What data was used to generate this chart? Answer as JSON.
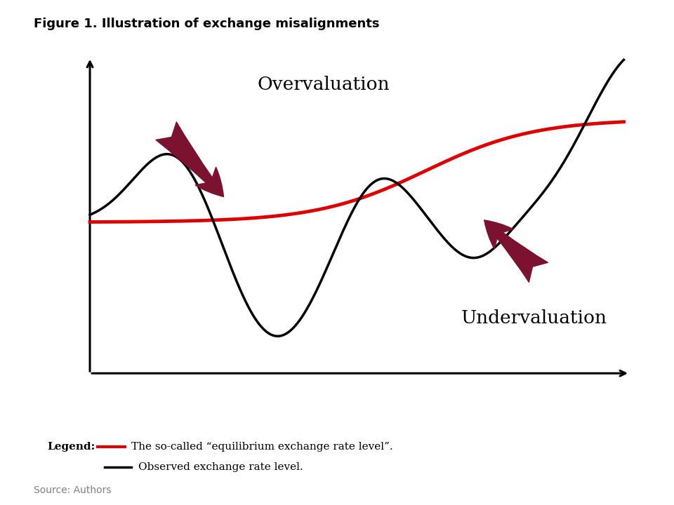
{
  "title": "Figure 1. Illustration of exchange misalignments",
  "title_fontsize": 13,
  "title_fontweight": "bold",
  "background_color": "#ffffff",
  "arrow_color": "#7B1230",
  "red_line_color": "#DD0000",
  "black_line_color": "#000000",
  "overvaluation_label": "Overvaluation",
  "undervaluation_label": "Undervaluation",
  "legend_red_text": "The so-called “equilibrium exchange rate level”.",
  "legend_black_text": "Observed exchange rate level.",
  "source_text": "Source: Authors",
  "label_fontsize": 19,
  "legend_fontsize": 11,
  "source_fontsize": 10
}
